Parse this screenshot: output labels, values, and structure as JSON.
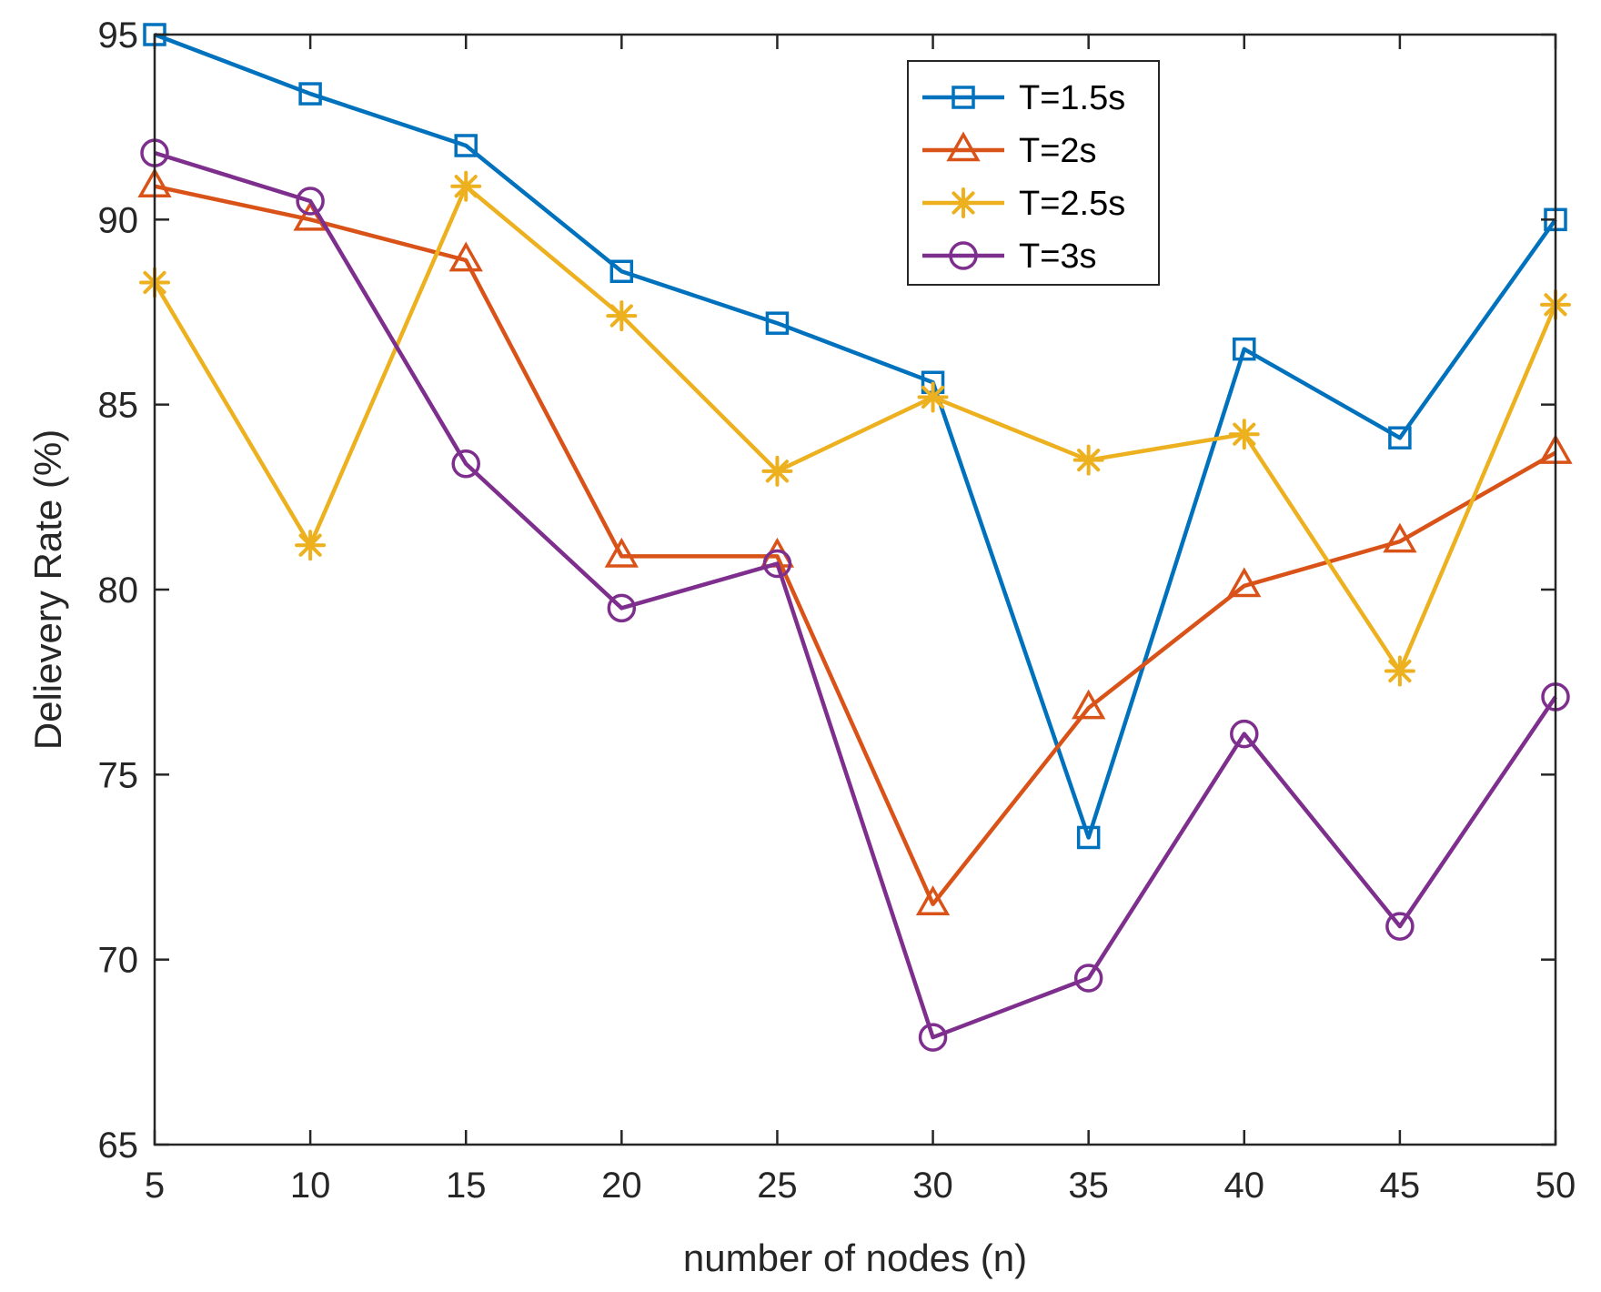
{
  "chart_data": {
    "type": "line",
    "title": "",
    "xlabel": "number of nodes (n)",
    "ylabel": "Delievery Rate (%)",
    "xlim": [
      5,
      50
    ],
    "ylim": [
      65,
      95
    ],
    "xticks": [
      5,
      10,
      15,
      20,
      25,
      30,
      35,
      40,
      45,
      50
    ],
    "yticks": [
      65,
      70,
      75,
      80,
      85,
      90,
      95
    ],
    "grid": false,
    "legend_position": "top-right",
    "x": [
      5,
      10,
      15,
      20,
      25,
      30,
      35,
      40,
      45,
      50
    ],
    "series": [
      {
        "name": "T=1.5s",
        "marker": "square",
        "color": "#0072BD",
        "values": [
          95.0,
          93.4,
          92.0,
          88.6,
          87.2,
          85.6,
          73.3,
          86.5,
          84.1,
          90.0
        ]
      },
      {
        "name": "T=2s",
        "marker": "triangle",
        "color": "#D95319",
        "values": [
          90.9,
          90.0,
          88.9,
          80.9,
          80.9,
          71.5,
          76.8,
          80.1,
          81.3,
          83.7
        ]
      },
      {
        "name": "T=2.5s",
        "marker": "asterisk",
        "color": "#EDB120",
        "values": [
          88.3,
          81.2,
          90.9,
          87.4,
          83.2,
          85.2,
          83.5,
          84.2,
          77.8,
          87.7
        ]
      },
      {
        "name": "T=3s",
        "marker": "circle",
        "color": "#7E2F8E",
        "values": [
          91.8,
          90.5,
          83.4,
          79.5,
          80.7,
          67.9,
          69.5,
          76.1,
          70.9,
          77.1
        ]
      }
    ]
  }
}
